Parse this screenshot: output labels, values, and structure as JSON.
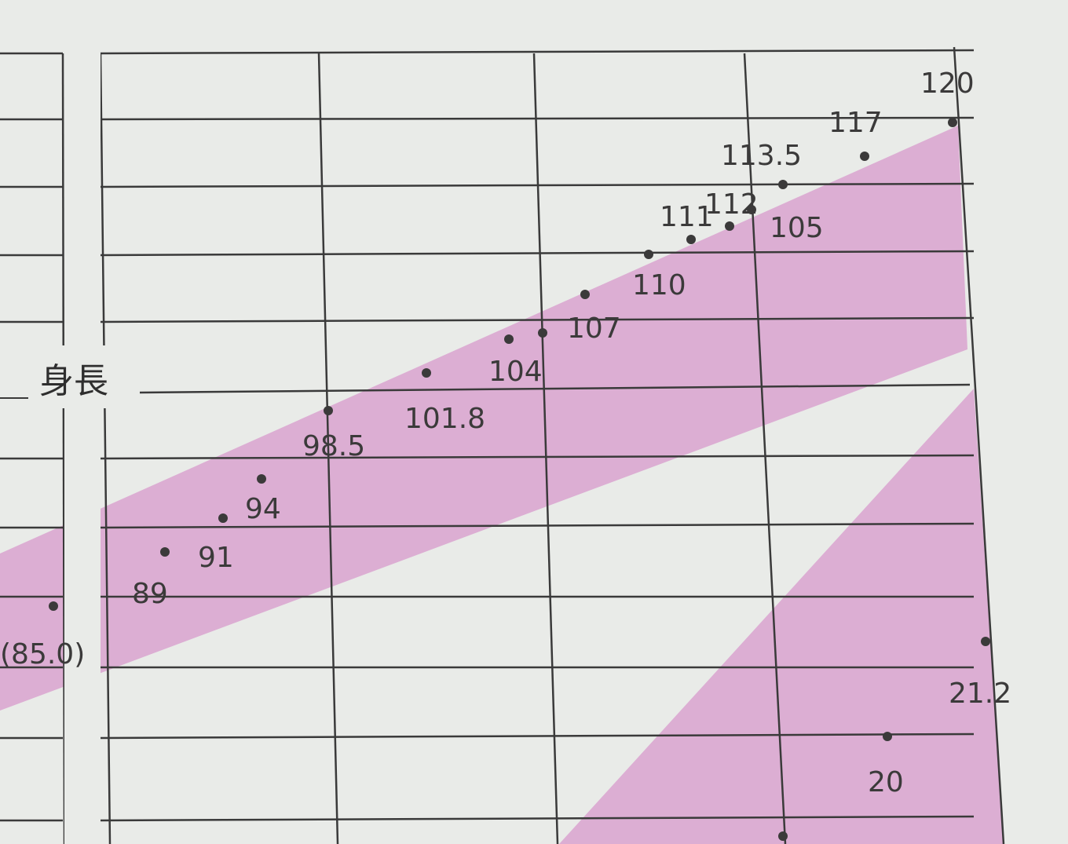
{
  "chart_data": {
    "type": "scatter",
    "title": "",
    "ylabel": "身長",
    "grid": true,
    "colors": {
      "paper": "#e9ebe8",
      "band": "#dcaed3",
      "grid": "#3a3a3a",
      "ink": "#3b3a3a"
    },
    "series": [
      {
        "name": "身長",
        "annotations": [
          "(85.0)",
          "89",
          "91",
          "94",
          "98.5",
          "101.8",
          "104",
          "107",
          "110",
          "111",
          "112",
          "105",
          "113.5",
          "117",
          "120"
        ]
      },
      {
        "annotations": [
          "21.2",
          "20"
        ]
      }
    ]
  }
}
